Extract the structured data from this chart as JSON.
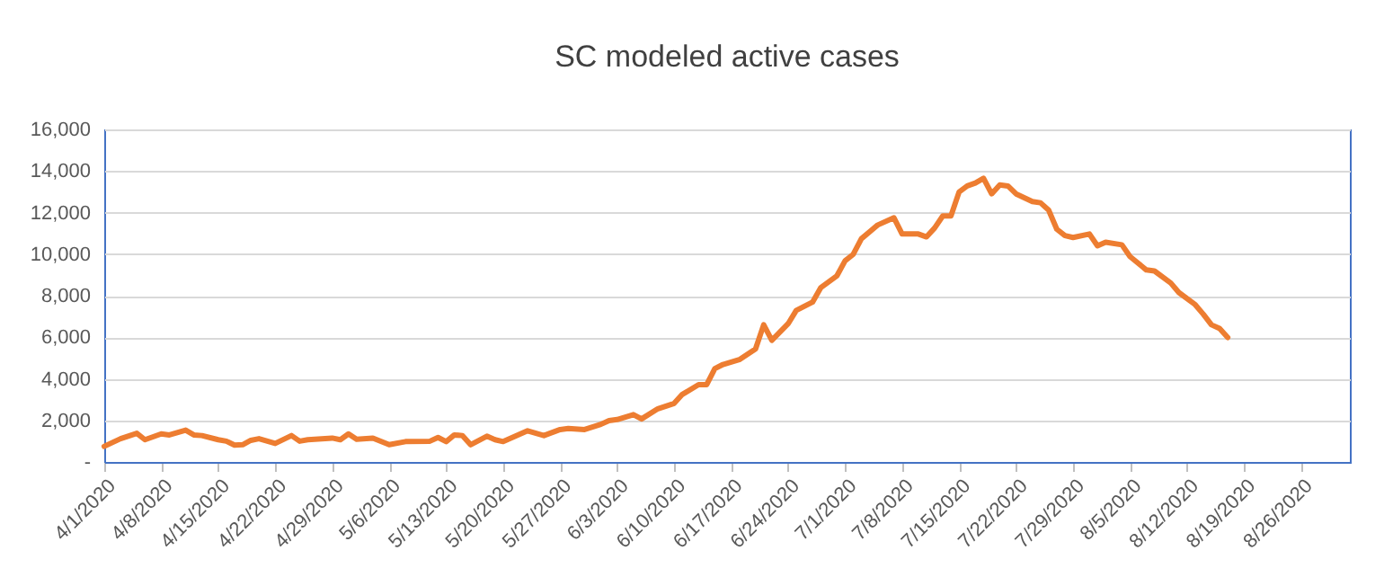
{
  "chart_data": {
    "type": "line",
    "title": "SC modeled active cases",
    "x": [
      "2020-04-01",
      "2020-04-03",
      "2020-04-05",
      "2020-04-06",
      "2020-04-08",
      "2020-04-09",
      "2020-04-11",
      "2020-04-12",
      "2020-04-13",
      "2020-04-15",
      "2020-04-16",
      "2020-04-17",
      "2020-04-18",
      "2020-04-19",
      "2020-04-20",
      "2020-04-22",
      "2020-04-24",
      "2020-04-25",
      "2020-04-26",
      "2020-04-29",
      "2020-04-30",
      "2020-05-01",
      "2020-05-02",
      "2020-05-04",
      "2020-05-06",
      "2020-05-08",
      "2020-05-11",
      "2020-05-12",
      "2020-05-13",
      "2020-05-14",
      "2020-05-15",
      "2020-05-16",
      "2020-05-18",
      "2020-05-19",
      "2020-05-20",
      "2020-05-23",
      "2020-05-25",
      "2020-05-27",
      "2020-05-28",
      "2020-05-30",
      "2020-06-01",
      "2020-06-02",
      "2020-06-03",
      "2020-06-05",
      "2020-06-06",
      "2020-06-08",
      "2020-06-10",
      "2020-06-11",
      "2020-06-13",
      "2020-06-14",
      "2020-06-15",
      "2020-06-16",
      "2020-06-18",
      "2020-06-20",
      "2020-06-21",
      "2020-06-22",
      "2020-06-24",
      "2020-06-25",
      "2020-06-27",
      "2020-06-28",
      "2020-06-30",
      "2020-07-01",
      "2020-07-02",
      "2020-07-03",
      "2020-07-05",
      "2020-07-07",
      "2020-07-08",
      "2020-07-10",
      "2020-07-11",
      "2020-07-12",
      "2020-07-13",
      "2020-07-14",
      "2020-07-15",
      "2020-07-16",
      "2020-07-17",
      "2020-07-18",
      "2020-07-19",
      "2020-07-20",
      "2020-07-21",
      "2020-07-22",
      "2020-07-24",
      "2020-07-25",
      "2020-07-26",
      "2020-07-27",
      "2020-07-28",
      "2020-07-29",
      "2020-07-31",
      "2020-08-01",
      "2020-08-02",
      "2020-08-04",
      "2020-08-05",
      "2020-08-07",
      "2020-08-08",
      "2020-08-10",
      "2020-08-11",
      "2020-08-13",
      "2020-08-14",
      "2020-08-15",
      "2020-08-16",
      "2020-08-17"
    ],
    "series": [
      {
        "color": "#ed7d31",
        "values": [
          750,
          1120,
          1380,
          1070,
          1350,
          1300,
          1530,
          1300,
          1270,
          1070,
          1000,
          810,
          830,
          1040,
          1120,
          890,
          1270,
          1000,
          1070,
          1150,
          1070,
          1350,
          1090,
          1150,
          830,
          980,
          1000,
          1180,
          980,
          1300,
          1270,
          830,
          1240,
          1070,
          980,
          1500,
          1270,
          1560,
          1610,
          1560,
          1810,
          1990,
          2040,
          2280,
          2070,
          2560,
          2820,
          3250,
          3720,
          3720,
          4490,
          4690,
          4920,
          5440,
          6600,
          5850,
          6650,
          7290,
          7690,
          8380,
          8960,
          9680,
          9990,
          10740,
          11400,
          11750,
          10970,
          10970,
          10830,
          11260,
          11840,
          11840,
          12990,
          13280,
          13420,
          13650,
          12900,
          13330,
          13280,
          12900,
          12530,
          12470,
          12120,
          11200,
          10890,
          10800,
          10970,
          10400,
          10570,
          10450,
          9880,
          9240,
          9190,
          8610,
          8150,
          7570,
          7110,
          6600,
          6420,
          5990
        ]
      }
    ],
    "xlim": [
      "2020-04-01",
      "2020-09-01"
    ],
    "xticks": [
      {
        "value": "2020-04-01",
        "label": "4/1/2020"
      },
      {
        "value": "2020-04-08",
        "label": "4/8/2020"
      },
      {
        "value": "2020-04-15",
        "label": "4/15/2020"
      },
      {
        "value": "2020-04-22",
        "label": "4/22/2020"
      },
      {
        "value": "2020-04-29",
        "label": "4/29/2020"
      },
      {
        "value": "2020-05-06",
        "label": "5/6/2020"
      },
      {
        "value": "2020-05-13",
        "label": "5/13/2020"
      },
      {
        "value": "2020-05-20",
        "label": "5/20/2020"
      },
      {
        "value": "2020-05-27",
        "label": "5/27/2020"
      },
      {
        "value": "2020-06-03",
        "label": "6/3/2020"
      },
      {
        "value": "2020-06-10",
        "label": "6/10/2020"
      },
      {
        "value": "2020-06-17",
        "label": "6/17/2020"
      },
      {
        "value": "2020-06-24",
        "label": "6/24/2020"
      },
      {
        "value": "2020-07-01",
        "label": "7/1/2020"
      },
      {
        "value": "2020-07-08",
        "label": "7/8/2020"
      },
      {
        "value": "2020-07-15",
        "label": "7/15/2020"
      },
      {
        "value": "2020-07-22",
        "label": "7/22/2020"
      },
      {
        "value": "2020-07-29",
        "label": "7/29/2020"
      },
      {
        "value": "2020-08-05",
        "label": "8/5/2020"
      },
      {
        "value": "2020-08-12",
        "label": "8/12/2020"
      },
      {
        "value": "2020-08-19",
        "label": "8/19/2020"
      },
      {
        "value": "2020-08-26",
        "label": "8/26/2020"
      }
    ],
    "ylim": [
      0,
      16000
    ],
    "yticks": [
      {
        "value": 0,
        "label": "-"
      },
      {
        "value": 2000,
        "label": "2,000"
      },
      {
        "value": 4000,
        "label": "4,000"
      },
      {
        "value": 6000,
        "label": "6,000"
      },
      {
        "value": 8000,
        "label": "8,000"
      },
      {
        "value": 10000,
        "label": "10,000"
      },
      {
        "value": 12000,
        "label": "12,000"
      },
      {
        "value": 14000,
        "label": "14,000"
      },
      {
        "value": 16000,
        "label": "16,000"
      }
    ],
    "grid": "y"
  }
}
